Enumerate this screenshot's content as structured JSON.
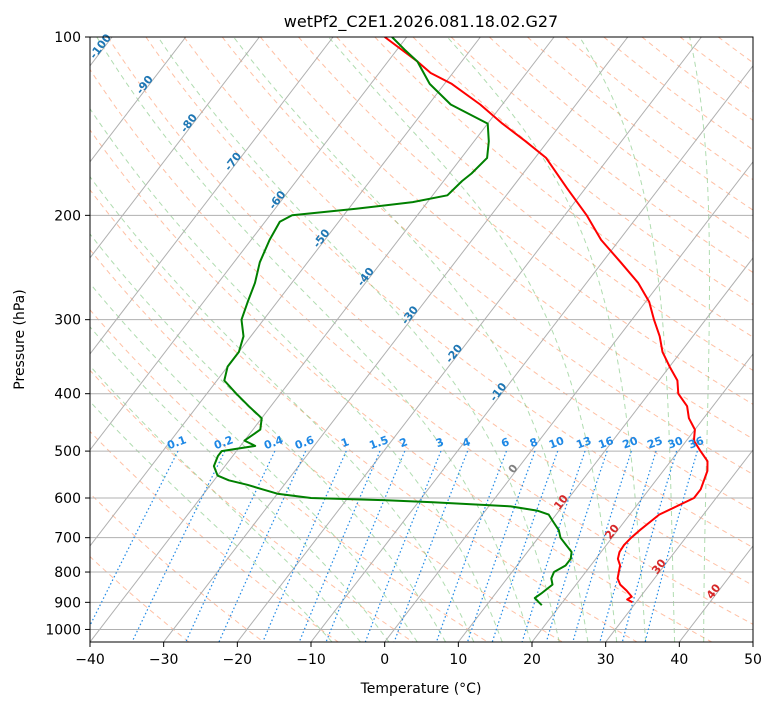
{
  "chart_data": {
    "type": "line",
    "title": "wetPf2_C2E1.2026.081.18.02.G27",
    "xlabel": "Temperature (°C)",
    "ylabel": "Pressure (hPa)",
    "xlim": [
      -40,
      50
    ],
    "ylim": [
      1050,
      100
    ],
    "y_scale": "log",
    "grid": true,
    "x_ticks": [
      "−40",
      "−30",
      "−20",
      "−10",
      "0",
      "10",
      "20",
      "30",
      "40",
      "50"
    ],
    "y_ticks": [
      "100",
      "200",
      "300",
      "400",
      "500",
      "600",
      "700",
      "800",
      "900",
      "1000"
    ],
    "colors": {
      "temperature": "#ff0000",
      "dewpoint": "#008000",
      "dry_adiabat": "#ff8c5a",
      "moist_adiabat": "#6fbf6f",
      "mixing_ratio": "#1e88e5",
      "isotherm_neg": "#1f77b4",
      "isotherm_pos": "#d62728",
      "grid": "#b0b0b0"
    },
    "isotherm_labels": {
      "cold": [
        "-100",
        "-90",
        "-80",
        "-70",
        "-60",
        "-50",
        "-40",
        "-30",
        "-20",
        "-10"
      ],
      "warm": [
        "0",
        "10",
        "20",
        "30",
        "40"
      ]
    },
    "mixing_ratio_labels": [
      "0.1",
      "0.2",
      "0.4",
      "0.6",
      "1",
      "1.5",
      "2",
      "3",
      "4",
      "6",
      "8",
      "10",
      "13",
      "16",
      "20",
      "25",
      "30",
      "36"
    ],
    "series": [
      {
        "role": "temperature",
        "points": [
          [
            900,
            29.5
          ],
          [
            890,
            28.5
          ],
          [
            880,
            28.8
          ],
          [
            860,
            27.5
          ],
          [
            840,
            26.0
          ],
          [
            820,
            25.0
          ],
          [
            800,
            24.5
          ],
          [
            780,
            24.0
          ],
          [
            760,
            23.0
          ],
          [
            740,
            22.5
          ],
          [
            720,
            22.4
          ],
          [
            700,
            22.6
          ],
          [
            680,
            23.0
          ],
          [
            660,
            23.5
          ],
          [
            640,
            24.0
          ],
          [
            620,
            25.5
          ],
          [
            600,
            27.0
          ],
          [
            580,
            27.0
          ],
          [
            560,
            26.5
          ],
          [
            540,
            26.0
          ],
          [
            520,
            25.0
          ],
          [
            500,
            23.0
          ],
          [
            480,
            21.0
          ],
          [
            460,
            20.0
          ],
          [
            440,
            18.0
          ],
          [
            420,
            16.5
          ],
          [
            400,
            14.0
          ],
          [
            380,
            12.5
          ],
          [
            360,
            10.0
          ],
          [
            340,
            7.5
          ],
          [
            320,
            5.5
          ],
          [
            300,
            3.0
          ],
          [
            280,
            0.5
          ],
          [
            260,
            -3.0
          ],
          [
            240,
            -7.5
          ],
          [
            220,
            -12.5
          ],
          [
            200,
            -17.0
          ],
          [
            180,
            -22.5
          ],
          [
            160,
            -28.5
          ],
          [
            150,
            -33.0
          ],
          [
            140,
            -38.0
          ],
          [
            130,
            -43.0
          ],
          [
            120,
            -49.0
          ],
          [
            115,
            -53.0
          ],
          [
            110,
            -56.0
          ],
          [
            100,
            -63.0
          ]
        ]
      },
      {
        "role": "dewpoint",
        "points": [
          [
            910,
            17.5
          ],
          [
            900,
            16.8
          ],
          [
            885,
            15.8
          ],
          [
            870,
            16.2
          ],
          [
            840,
            16.8
          ],
          [
            820,
            16.0
          ],
          [
            800,
            15.7
          ],
          [
            780,
            16.6
          ],
          [
            760,
            16.6
          ],
          [
            740,
            16.0
          ],
          [
            720,
            14.5
          ],
          [
            700,
            13.0
          ],
          [
            680,
            12.0
          ],
          [
            660,
            10.5
          ],
          [
            640,
            9.0
          ],
          [
            630,
            7.0
          ],
          [
            620,
            3.0
          ],
          [
            610,
            -8.0
          ],
          [
            605,
            -15.0
          ],
          [
            600,
            -25.0
          ],
          [
            590,
            -30.0
          ],
          [
            580,
            -32.5
          ],
          [
            570,
            -35.0
          ],
          [
            560,
            -38.0
          ],
          [
            550,
            -40.0
          ],
          [
            530,
            -41.5
          ],
          [
            510,
            -42.0
          ],
          [
            500,
            -42.0
          ],
          [
            495,
            -40.0
          ],
          [
            490,
            -38.0
          ],
          [
            480,
            -40.0
          ],
          [
            460,
            -39.0
          ],
          [
            440,
            -40.0
          ],
          [
            420,
            -43.0
          ],
          [
            400,
            -46.0
          ],
          [
            380,
            -49.0
          ],
          [
            360,
            -50.0
          ],
          [
            340,
            -50.0
          ],
          [
            320,
            -51.0
          ],
          [
            300,
            -53.0
          ],
          [
            280,
            -54.0
          ],
          [
            260,
            -55.0
          ],
          [
            240,
            -56.5
          ],
          [
            220,
            -57.5
          ],
          [
            205,
            -58.0
          ],
          [
            200,
            -57.0
          ],
          [
            195,
            -49.0
          ],
          [
            190,
            -42.0
          ],
          [
            185,
            -38.0
          ],
          [
            175,
            -37.5
          ],
          [
            170,
            -37.0
          ],
          [
            160,
            -36.5
          ],
          [
            150,
            -38.0
          ],
          [
            140,
            -40.0
          ],
          [
            130,
            -47.0
          ],
          [
            120,
            -52.0
          ],
          [
            110,
            -56.0
          ],
          [
            105,
            -59.0
          ],
          [
            100,
            -62.0
          ]
        ]
      }
    ]
  }
}
